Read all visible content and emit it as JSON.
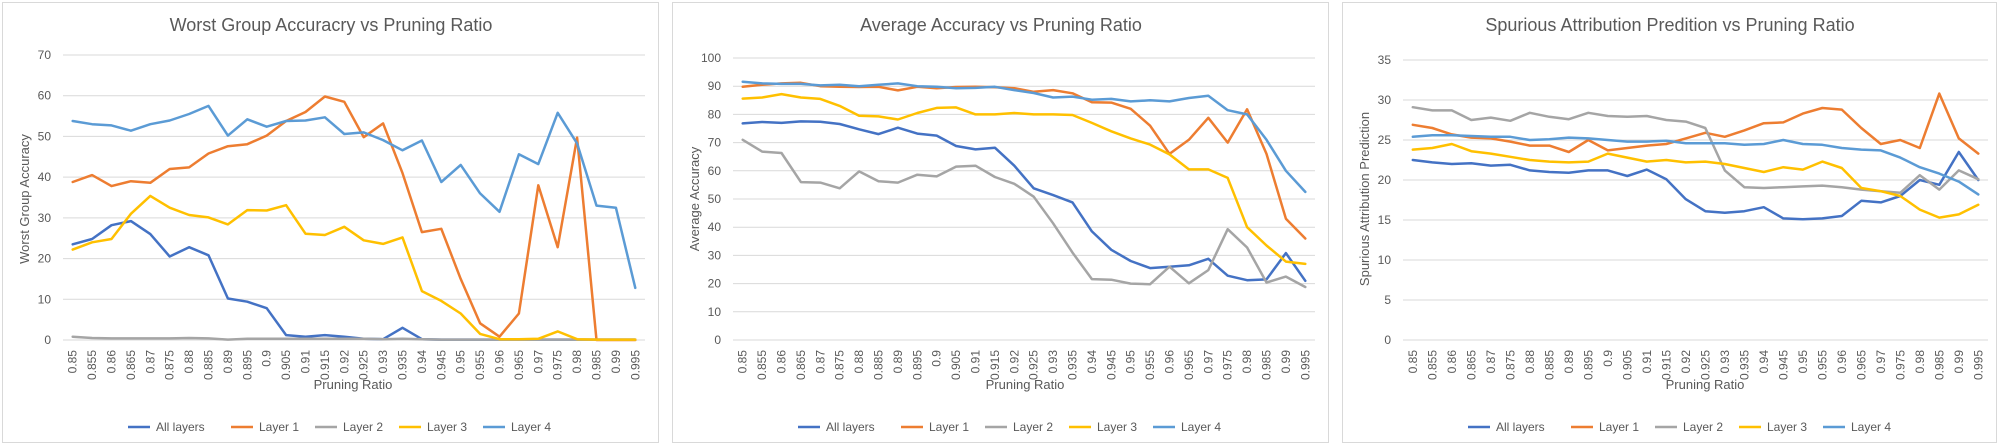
{
  "chart_data": [
    {
      "type": "line",
      "title": "Worst Group Accuracry vs Pruning Ratio",
      "xlabel": "Pruning Ratio",
      "ylabel": "Worst Group Accuracy",
      "ylim": [
        0,
        70
      ],
      "yticks": [
        "0",
        "10",
        "20",
        "30",
        "40",
        "50",
        "60",
        "70"
      ],
      "grid": true,
      "legend": "bottom",
      "categories": [
        "0.85",
        "0.855",
        "0.86",
        "0.865",
        "0.87",
        "0.875",
        "0.88",
        "0.885",
        "0.89",
        "0.895",
        "0.9",
        "0.905",
        "0.91",
        "0.915",
        "0.92",
        "0.925",
        "0.93",
        "0.935",
        "0.94",
        "0.945",
        "0.95",
        "0.955",
        "0.96",
        "0.965",
        "0.97",
        "0.975",
        "0.98",
        "0.985",
        "0.99",
        "0.995"
      ],
      "series": [
        {
          "name": "All layers",
          "color": "#4472C4",
          "values": [
            23.5,
            24.8,
            28.2,
            29.2,
            26.0,
            20.5,
            22.8,
            20.8,
            10.2,
            9.4,
            7.8,
            1.2,
            0.8,
            1.2,
            0.8,
            0.3,
            0.2,
            3.0,
            0.2,
            0.1,
            0.1,
            0.1,
            0.1,
            0.1,
            0.1,
            0.1,
            0.1,
            0.1,
            0.1,
            0.1
          ]
        },
        {
          "name": "Layer 1",
          "color": "#ED7D31",
          "values": [
            38.8,
            40.5,
            37.8,
            39.0,
            38.6,
            42.0,
            42.4,
            45.8,
            47.6,
            48.1,
            50.2,
            53.8,
            56.0,
            59.8,
            58.5,
            49.8,
            53.2,
            41.0,
            26.5,
            27.3,
            15.0,
            4.1,
            0.8,
            6.5,
            38.0,
            22.8,
            49.7,
            0,
            0,
            0
          ]
        },
        {
          "name": "Layer 2",
          "color": "#A5A5A5",
          "values": [
            0.8,
            0.5,
            0.4,
            0.4,
            0.4,
            0.4,
            0.5,
            0.4,
            0.1,
            0.3,
            0.3,
            0.3,
            0.3,
            0.3,
            0.3,
            0.3,
            0.2,
            0.3,
            0.2,
            0.1,
            0.1,
            0.1,
            0.1,
            0.1,
            0.1,
            0.1,
            0.1,
            0.1,
            0.1,
            0.1
          ]
        },
        {
          "name": "Layer 3",
          "color": "#FFC000",
          "values": [
            22.2,
            24.0,
            24.8,
            31.0,
            35.4,
            32.5,
            30.7,
            30.1,
            28.4,
            31.9,
            31.8,
            33.1,
            26.1,
            25.8,
            27.8,
            24.5,
            23.6,
            25.2,
            12.0,
            9.6,
            6.5,
            1.5,
            0.2,
            0.2,
            0.3,
            2.1,
            0.2,
            0.1,
            0.1,
            0.1
          ]
        },
        {
          "name": "Layer 4",
          "color": "#5B9BD5",
          "values": [
            53.8,
            53.0,
            52.7,
            51.4,
            53.0,
            53.9,
            55.5,
            57.5,
            50.2,
            54.2,
            52.4,
            53.8,
            53.9,
            54.7,
            50.6,
            51.0,
            49.1,
            46.6,
            49.0,
            38.8,
            43.0,
            36.0,
            31.5,
            45.6,
            43.2,
            55.8,
            48.3,
            33.0,
            32.5,
            12.8
          ]
        }
      ]
    },
    {
      "type": "line",
      "title": "Average Accuracy vs Pruning Ratio",
      "xlabel": "Pruning Ratio",
      "ylabel": "Average Accuracy",
      "ylim": [
        0,
        100
      ],
      "yticks": [
        "0",
        "10",
        "20",
        "30",
        "40",
        "50",
        "60",
        "70",
        "80",
        "90",
        "100"
      ],
      "grid": true,
      "legend": "bottom",
      "categories": [
        "0.85",
        "0.855",
        "0.86",
        "0.865",
        "0.87",
        "0.875",
        "0.88",
        "0.885",
        "0.89",
        "0.895",
        "0.9",
        "0.905",
        "0.91",
        "0.915",
        "0.92",
        "0.925",
        "0.93",
        "0.935",
        "0.94",
        "0.945",
        "0.95",
        "0.955",
        "0.96",
        "0.965",
        "0.97",
        "0.975",
        "0.98",
        "0.985",
        "0.99",
        "0.995"
      ],
      "series": [
        {
          "name": "All layers",
          "color": "#4472C4",
          "values": [
            76.8,
            77.3,
            77.0,
            77.5,
            77.4,
            76.6,
            74.7,
            73.0,
            75.3,
            73.2,
            72.5,
            68.8,
            67.6,
            68.2,
            61.8,
            53.8,
            51.4,
            48.8,
            38.5,
            32.0,
            28.0,
            25.5,
            26.0,
            26.5,
            28.8,
            22.8,
            21.2,
            21.5,
            30.8,
            21.0
          ]
        },
        {
          "name": "Layer 1",
          "color": "#ED7D31",
          "values": [
            89.8,
            90.5,
            91.0,
            91.2,
            90.0,
            89.8,
            89.7,
            89.8,
            88.5,
            89.8,
            89.3,
            89.7,
            89.8,
            89.6,
            89.3,
            88.0,
            88.6,
            87.5,
            84.3,
            84.2,
            82.0,
            76.0,
            66.0,
            71.0,
            78.8,
            70.0,
            81.8,
            66.0,
            43.0,
            36.0
          ]
        },
        {
          "name": "Layer 2",
          "color": "#A5A5A5",
          "values": [
            71.0,
            66.8,
            66.3,
            56.0,
            55.8,
            53.8,
            59.8,
            56.3,
            55.8,
            58.6,
            58.0,
            61.5,
            61.8,
            57.8,
            55.4,
            50.8,
            41.4,
            31.0,
            21.6,
            21.4,
            20.0,
            19.8,
            26.0,
            20.1,
            24.8,
            39.3,
            32.8,
            20.4,
            22.5,
            18.8
          ]
        },
        {
          "name": "Layer 3",
          "color": "#FFC000",
          "values": [
            85.6,
            86.0,
            87.2,
            86.0,
            85.5,
            83.0,
            79.5,
            79.3,
            78.2,
            80.5,
            82.3,
            82.5,
            80.0,
            80.0,
            80.5,
            80.0,
            80.0,
            79.8,
            77.0,
            74.0,
            71.5,
            69.3,
            65.8,
            60.5,
            60.5,
            57.5,
            40.0,
            33.5,
            27.8,
            27.0
          ]
        },
        {
          "name": "Layer 4",
          "color": "#5B9BD5",
          "values": [
            91.6,
            91.0,
            90.8,
            90.8,
            90.3,
            90.5,
            90.0,
            90.5,
            91.0,
            90.0,
            89.8,
            89.3,
            89.4,
            89.8,
            88.6,
            87.6,
            86.0,
            86.3,
            85.2,
            85.5,
            84.6,
            85.0,
            84.6,
            85.8,
            86.6,
            81.5,
            80.0,
            71.0,
            60.0,
            52.5
          ]
        }
      ]
    },
    {
      "type": "line",
      "title": "Spurious Attribution Predition vs Pruning Ratio",
      "xlabel": "Pruning Ratio",
      "ylabel": "Spurious Attribution Prediction",
      "ylim": [
        0,
        35
      ],
      "yticks": [
        "0",
        "5",
        "10",
        "15",
        "20",
        "25",
        "30",
        "35"
      ],
      "grid": true,
      "legend": "bottom",
      "categories": [
        "0.85",
        "0.855",
        "0.86",
        "0.865",
        "0.87",
        "0.875",
        "0.88",
        "0.885",
        "0.89",
        "0.895",
        "0.9",
        "0.905",
        "0.91",
        "0.915",
        "0.92",
        "0.925",
        "0.93",
        "0.935",
        "0.94",
        "0.945",
        "0.95",
        "0.955",
        "0.96",
        "0.965",
        "0.97",
        "0.975",
        "0.98",
        "0.985",
        "0.99",
        "0.995"
      ],
      "series": [
        {
          "name": "All layers",
          "color": "#4472C4",
          "values": [
            22.5,
            22.2,
            22.0,
            22.1,
            21.8,
            21.9,
            21.2,
            21.0,
            20.9,
            21.2,
            21.2,
            20.5,
            21.3,
            20.1,
            17.6,
            16.1,
            15.9,
            16.1,
            16.6,
            15.2,
            15.1,
            15.2,
            15.5,
            17.4,
            17.2,
            18.0,
            20.0,
            19.4,
            23.5,
            20.0
          ]
        },
        {
          "name": "Layer 1",
          "color": "#ED7D31",
          "values": [
            26.9,
            26.5,
            25.7,
            25.3,
            25.2,
            24.8,
            24.3,
            24.3,
            23.5,
            25.0,
            23.7,
            24.0,
            24.3,
            24.5,
            25.2,
            25.9,
            25.4,
            26.2,
            27.1,
            27.2,
            28.3,
            29.0,
            28.8,
            26.5,
            24.5,
            25.0,
            24.0,
            30.8,
            25.2,
            23.3
          ]
        },
        {
          "name": "Layer 2",
          "color": "#A5A5A5",
          "values": [
            29.1,
            28.7,
            28.7,
            27.5,
            27.8,
            27.4,
            28.4,
            27.9,
            27.6,
            28.4,
            28.0,
            27.9,
            28.0,
            27.5,
            27.3,
            26.5,
            21.2,
            19.1,
            19.0,
            19.1,
            19.2,
            19.3,
            19.1,
            18.8,
            18.6,
            18.4,
            20.6,
            18.8,
            21.2,
            20.1
          ]
        },
        {
          "name": "Layer 3",
          "color": "#FFC000",
          "values": [
            23.8,
            24.0,
            24.5,
            23.6,
            23.3,
            22.9,
            22.5,
            22.3,
            22.2,
            22.3,
            23.3,
            22.8,
            22.3,
            22.5,
            22.2,
            22.3,
            22.0,
            21.5,
            21.0,
            21.6,
            21.3,
            22.3,
            21.5,
            19.0,
            18.6,
            18.0,
            16.3,
            15.3,
            15.7,
            16.9
          ]
        },
        {
          "name": "Layer 4",
          "color": "#5B9BD5",
          "values": [
            25.4,
            25.6,
            25.6,
            25.5,
            25.4,
            25.4,
            25.0,
            25.1,
            25.3,
            25.2,
            25.0,
            24.8,
            24.8,
            24.9,
            24.6,
            24.6,
            24.6,
            24.4,
            24.5,
            25.0,
            24.5,
            24.4,
            24.0,
            23.8,
            23.7,
            22.8,
            21.6,
            20.8,
            19.8,
            18.2
          ]
        }
      ]
    }
  ]
}
